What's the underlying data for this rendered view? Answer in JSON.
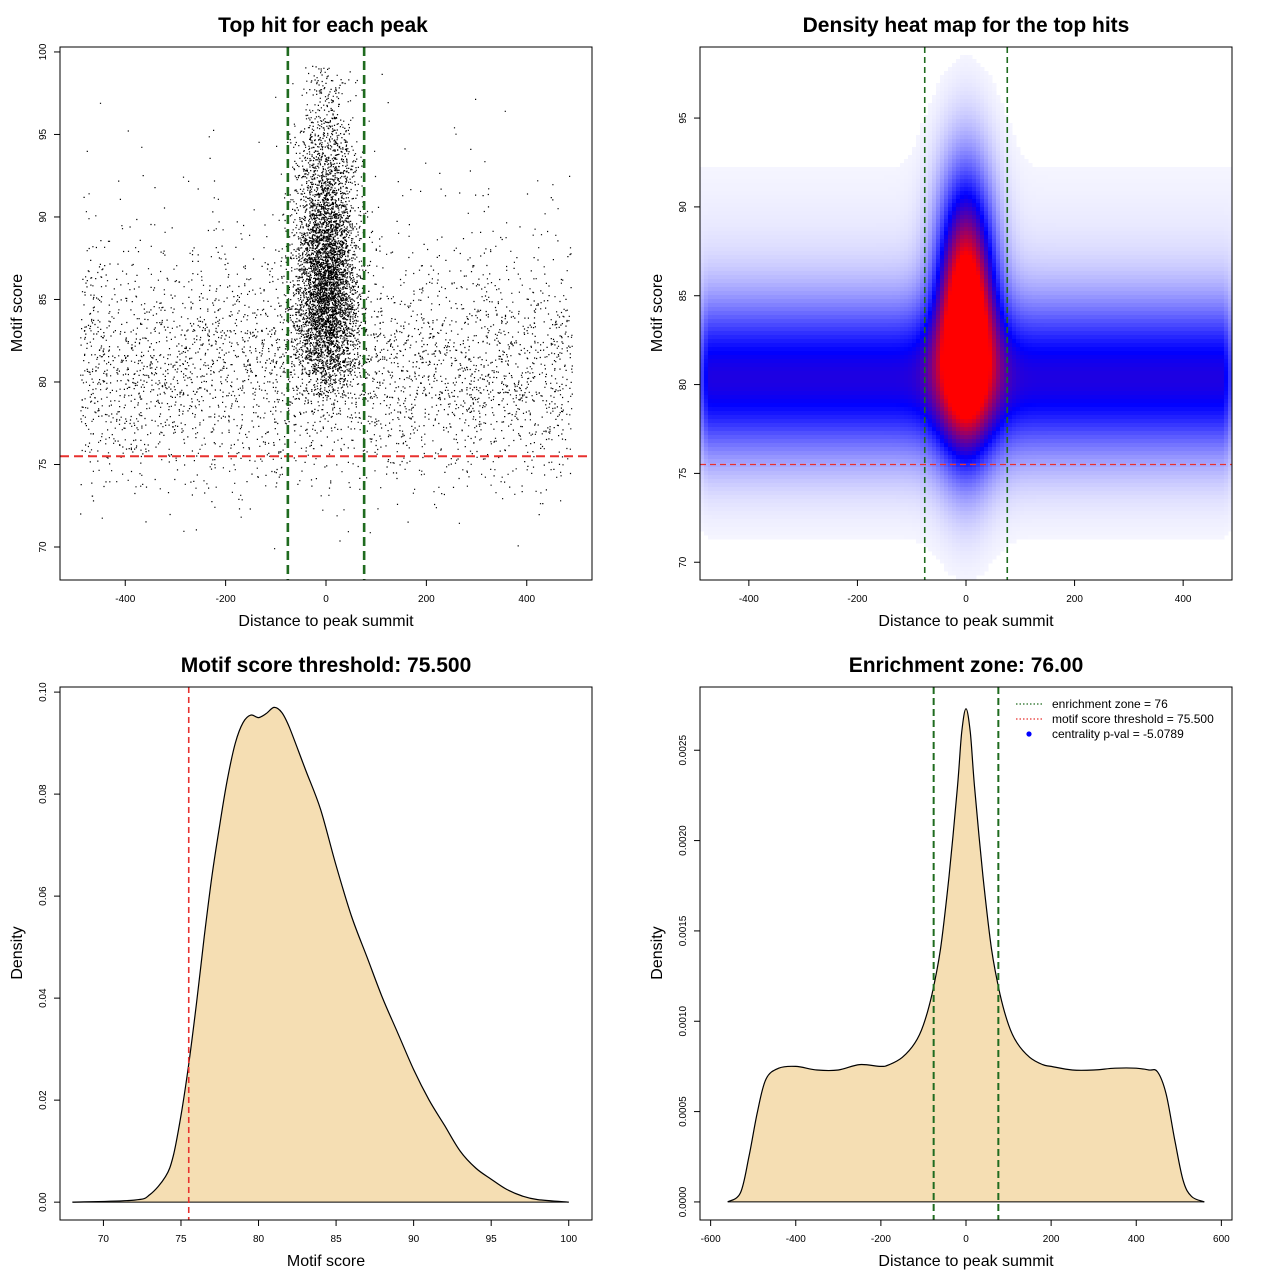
{
  "colors": {
    "threshold": "#e8312e",
    "zone": "#1f6b1f",
    "density_fill": "#f5deb3",
    "density_line": "#000000",
    "heat_low": "#ffffff",
    "heat_mid": "#0000ff",
    "heat_high": "#ff0000",
    "legend_dot": "#0000ff"
  },
  "chart_data": [
    {
      "type": "scatter",
      "title": "Top hit for each peak",
      "xlabel": "Distance to peak summit",
      "ylabel": "Motif score",
      "xlim": [
        -530,
        530
      ],
      "ylim": [
        68,
        100.3
      ],
      "xticks": [
        -400,
        -200,
        0,
        200,
        400
      ],
      "xtick_labels": [
        "-400",
        "-200",
        "0",
        "200",
        "400"
      ],
      "yticks": [
        70,
        75,
        80,
        85,
        90,
        95,
        100
      ],
      "ytick_labels": [
        "70",
        "75",
        "80",
        "85",
        "90",
        "95",
        "100"
      ],
      "threshold_line": 75.5,
      "zone_lines": [
        -76,
        76
      ],
      "point_count_note": "dense cloud of roughly 40000 points, background band centered near 80, central peak near 0 reaching ~98"
    },
    {
      "type": "heatmap",
      "title": "Density heat map for the top hits",
      "xlabel": "Distance to peak summit",
      "ylabel": "Motif score",
      "xlim": [
        -490,
        490
      ],
      "ylim": [
        69,
        99
      ],
      "xticks": [
        -400,
        -200,
        0,
        200,
        400
      ],
      "xtick_labels": [
        "-400",
        "-200",
        "0",
        "200",
        "400"
      ],
      "yticks": [
        70,
        75,
        80,
        85,
        90,
        95
      ],
      "ytick_labels": [
        "70",
        "75",
        "80",
        "85",
        "90",
        "95"
      ],
      "threshold_line": 75.5,
      "zone_lines": [
        -76,
        76
      ],
      "color_scale": [
        "white",
        "blue",
        "red"
      ]
    },
    {
      "type": "area",
      "title": "Motif score threshold: 75.500",
      "xlabel": "Motif score",
      "ylabel": "Density",
      "xlim": [
        67.2,
        101.5
      ],
      "ylim": [
        -0.0035,
        0.101
      ],
      "xticks": [
        70,
        75,
        80,
        85,
        90,
        95,
        100
      ],
      "xtick_labels": [
        "70",
        "75",
        "80",
        "85",
        "90",
        "95",
        "100"
      ],
      "yticks": [
        0.0,
        0.02,
        0.04,
        0.06,
        0.08,
        0.1
      ],
      "ytick_labels": [
        "0.00",
        "0.02",
        "0.04",
        "0.06",
        "0.08",
        "0.10"
      ],
      "threshold_line": 75.5,
      "x": [
        68,
        72,
        73,
        74,
        74.5,
        75,
        75.5,
        76,
        76.5,
        77,
        77.5,
        78,
        78.5,
        79,
        79.5,
        80,
        80.5,
        81,
        81.5,
        82,
        83,
        84,
        85,
        86,
        87,
        88,
        89,
        90,
        91,
        92,
        93,
        94,
        95,
        96,
        97,
        98,
        100
      ],
      "y": [
        0.0,
        0.0004,
        0.0015,
        0.005,
        0.009,
        0.017,
        0.027,
        0.039,
        0.052,
        0.064,
        0.074,
        0.083,
        0.09,
        0.094,
        0.0955,
        0.095,
        0.0958,
        0.097,
        0.096,
        0.093,
        0.085,
        0.077,
        0.066,
        0.056,
        0.048,
        0.04,
        0.033,
        0.026,
        0.02,
        0.015,
        0.01,
        0.0067,
        0.0045,
        0.0025,
        0.0012,
        0.0005,
        0.0
      ]
    },
    {
      "type": "area",
      "title": "Enrichment zone: 76.00",
      "xlabel": "Distance to peak summit",
      "ylabel": "Density",
      "xlim": [
        -625,
        625
      ],
      "ylim": [
        -0.0001,
        0.00285
      ],
      "xticks": [
        -600,
        -400,
        -200,
        0,
        200,
        400,
        600
      ],
      "xtick_labels": [
        "-600",
        "-400",
        "-200",
        "0",
        "200",
        "400",
        "600"
      ],
      "yticks": [
        0.0,
        0.0005,
        0.001,
        0.0015,
        0.002,
        0.0025
      ],
      "ytick_labels": [
        "0.0000",
        "0.0005",
        "0.0010",
        "0.0015",
        "0.0020",
        "0.0025"
      ],
      "zone_lines": [
        -76,
        76
      ],
      "x": [
        -560,
        -530,
        -510,
        -490,
        -470,
        -440,
        -400,
        -350,
        -300,
        -250,
        -200,
        -180,
        -150,
        -120,
        -100,
        -80,
        -60,
        -40,
        -20,
        -10,
        0,
        10,
        20,
        40,
        60,
        80,
        100,
        120,
        150,
        180,
        200,
        250,
        300,
        350,
        400,
        430,
        450,
        470,
        490,
        510,
        530,
        560
      ],
      "y": [
        0.0,
        5e-05,
        0.00025,
        0.0005,
        0.00068,
        0.00074,
        0.00075,
        0.00073,
        0.00073,
        0.00076,
        0.00075,
        0.00076,
        0.0008,
        0.00088,
        0.00098,
        0.00115,
        0.0014,
        0.0018,
        0.0023,
        0.0026,
        0.00273,
        0.0026,
        0.0023,
        0.0018,
        0.0014,
        0.00115,
        0.00098,
        0.00088,
        0.0008,
        0.00076,
        0.00075,
        0.00073,
        0.00073,
        0.00074,
        0.00074,
        0.00073,
        0.00072,
        0.0006,
        0.00035,
        0.00012,
        3e-05,
        0.0
      ],
      "legend": [
        {
          "label": "enrichment zone = 76",
          "style": "dotted",
          "color": "#1f6b1f"
        },
        {
          "label": "motif score threshold = 75.500",
          "style": "dotted",
          "color": "#e8312e"
        },
        {
          "label": "centrality p-val = -5.0789",
          "style": "dot",
          "color": "#0000ff"
        }
      ]
    }
  ]
}
